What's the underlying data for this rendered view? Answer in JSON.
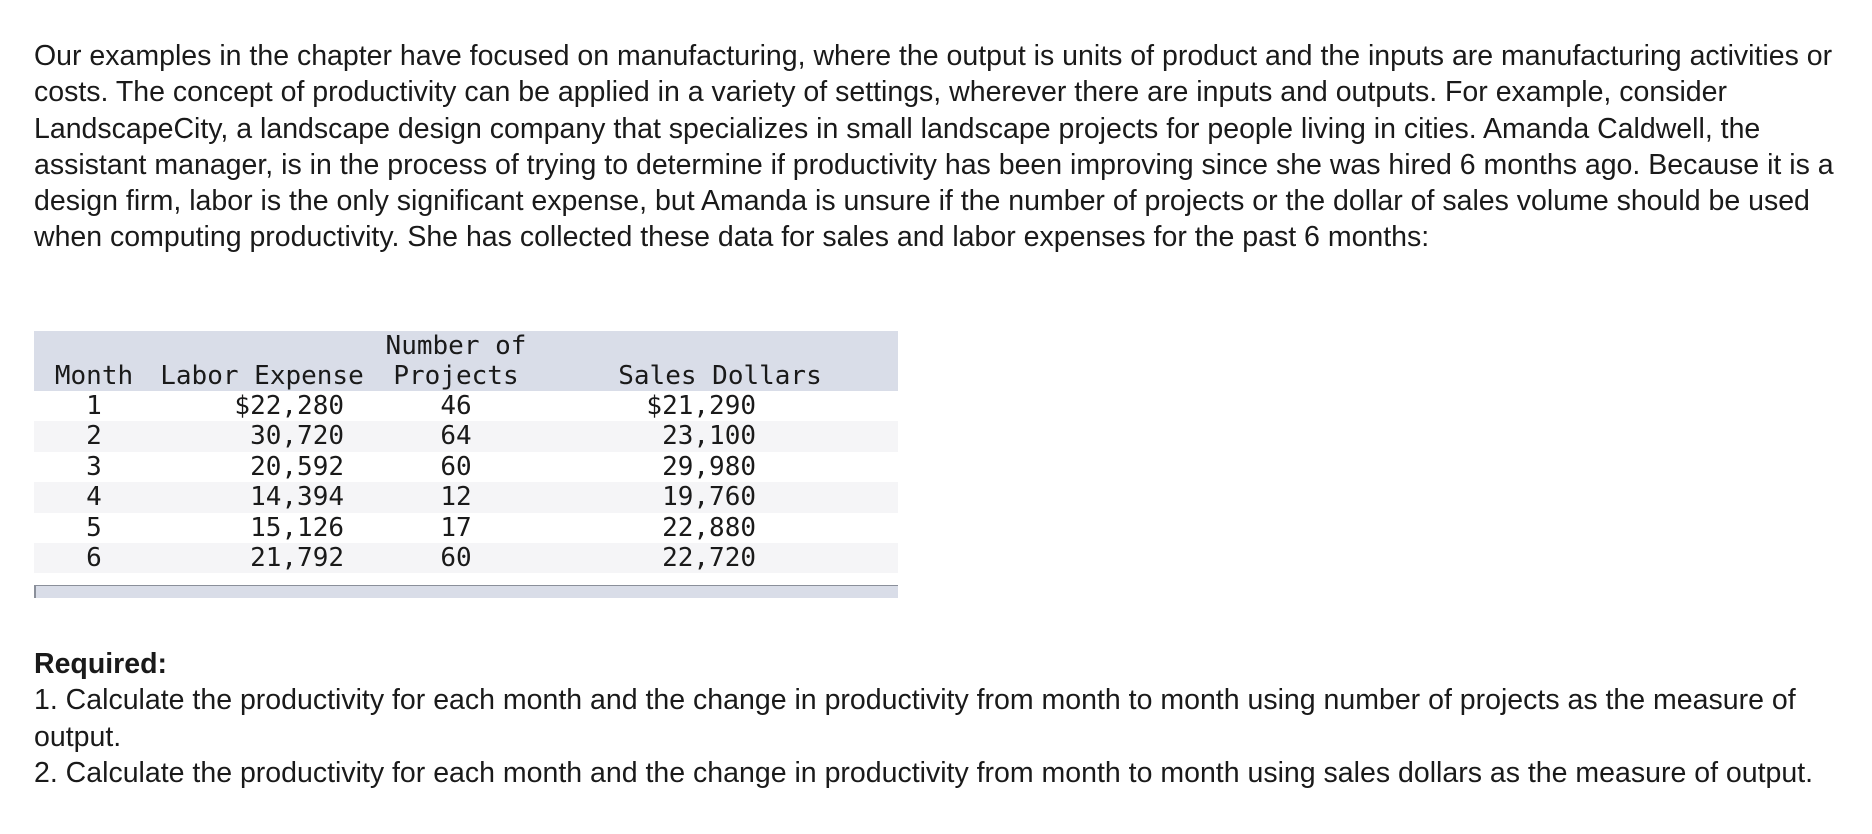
{
  "intro_text": "Our examples in the chapter have focused on manufacturing, where the output is units of product and the inputs are manufacturing activities or costs. The concept of productivity can be applied in a variety of settings, wherever there are inputs and outputs. For example, consider LandscapeCity, a landscape design company that specializes in small landscape projects for people living in cities. Amanda Caldwell, the assistant manager, is in the process of trying to determine if productivity has been improving since she was hired 6 months ago. Because it is a design firm, labor is the only significant expense, but Amanda is unsure if the number of projects or the dollar of sales volume should be used when computing productivity. She has collected these data for sales and labor expenses for the past 6 months:",
  "table": {
    "headers": {
      "month": "Month",
      "labor": "Labor Expense",
      "projects_line1": "Number of",
      "projects_line2": "Projects",
      "sales": "Sales Dollars"
    },
    "rows": [
      {
        "month": "1",
        "labor": "$22,280",
        "projects": "46",
        "sales": "$21,290"
      },
      {
        "month": "2",
        "labor": "30,720",
        "projects": "64",
        "sales": "23,100"
      },
      {
        "month": "3",
        "labor": "20,592",
        "projects": "60",
        "sales": "29,980"
      },
      {
        "month": "4",
        "labor": "14,394",
        "projects": "12",
        "sales": "19,760"
      },
      {
        "month": "5",
        "labor": "15,126",
        "projects": "17",
        "sales": "22,880"
      },
      {
        "month": "6",
        "labor": "21,792",
        "projects": "60",
        "sales": "22,720"
      }
    ]
  },
  "required": {
    "title": "Required:",
    "item1": "1. Calculate the productivity for each month and the change in productivity from month to month using number of projects as the measure of output.",
    "item2": "2. Calculate the productivity for each month and the change in productivity from month to month using sales dollars as the measure of output."
  }
}
